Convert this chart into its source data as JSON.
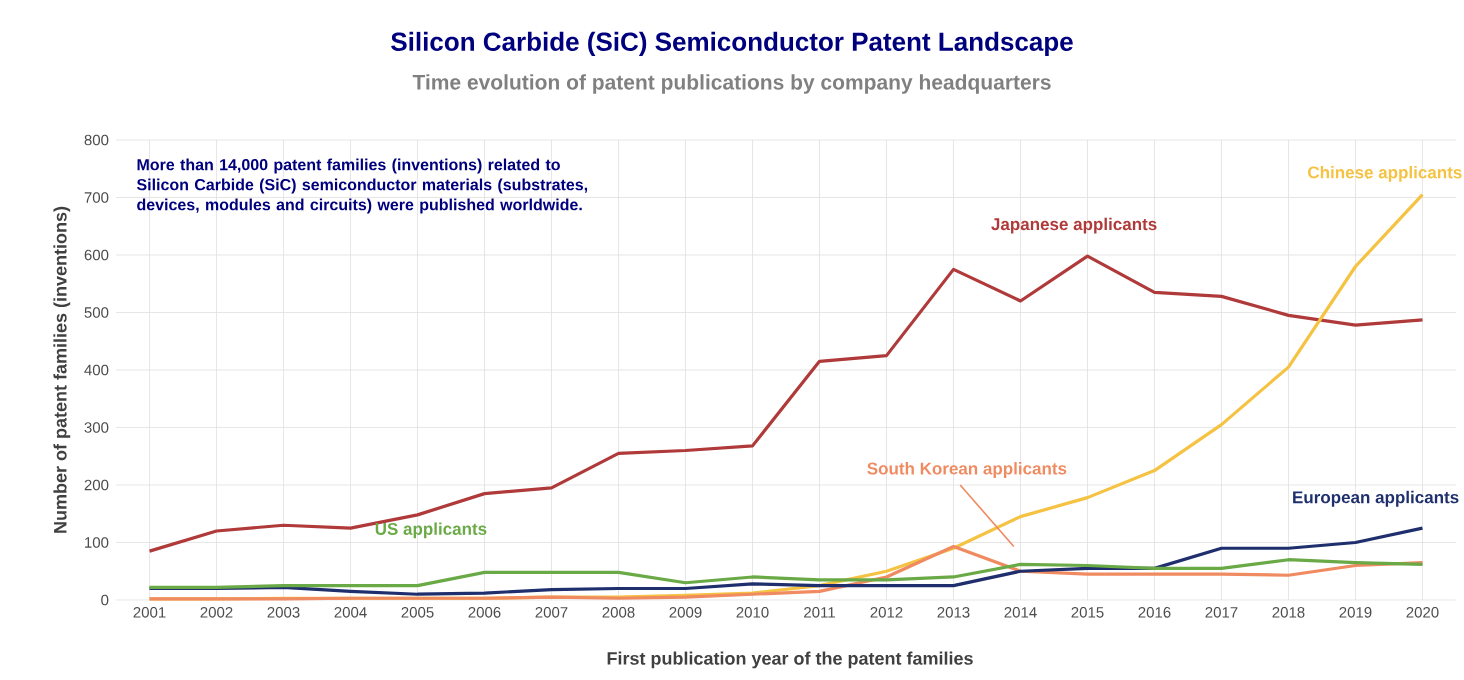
{
  "chart_data": {
    "type": "line",
    "title": "Silicon Carbide (SiC) Semiconductor Patent Landscape",
    "subtitle": "Time evolution of patent publications by company headquarters",
    "xlabel": "First publication year of the patent families",
    "ylabel": "Number of patent families (inventions)",
    "annotations": [
      "More than 14,000 patent families (inventions) related to Silicon Carbide (SiC) semiconductor materials (substrates, devices, modules and circuits) were published worldwide."
    ],
    "categories": [
      "2001",
      "2002",
      "2003",
      "2004",
      "2005",
      "2006",
      "2007",
      "2008",
      "2009",
      "2010",
      "2011",
      "2012",
      "2013",
      "2014",
      "2015",
      "2016",
      "2017",
      "2018",
      "2019",
      "2020"
    ],
    "series": [
      {
        "name": "Japanese applicants",
        "color": "#b03a3a",
        "values": [
          85,
          120,
          130,
          125,
          148,
          185,
          195,
          255,
          260,
          268,
          415,
          425,
          575,
          520,
          598,
          535,
          528,
          495,
          478,
          487
        ]
      },
      {
        "name": "Chinese applicants",
        "color": "#f5c242",
        "values": [
          2,
          2,
          3,
          3,
          3,
          3,
          5,
          5,
          8,
          12,
          25,
          50,
          90,
          145,
          178,
          225,
          305,
          405,
          580,
          705
        ]
      },
      {
        "name": "South Korean applicants",
        "color": "#f08a60",
        "values": [
          2,
          2,
          2,
          3,
          3,
          3,
          5,
          3,
          5,
          10,
          15,
          40,
          93,
          50,
          45,
          45,
          45,
          43,
          60,
          65
        ]
      },
      {
        "name": "European applicants",
        "color": "#1f2f6e",
        "values": [
          20,
          20,
          22,
          15,
          10,
          12,
          18,
          20,
          20,
          28,
          25,
          25,
          25,
          50,
          55,
          55,
          90,
          90,
          100,
          125
        ]
      },
      {
        "name": "US applicants",
        "color": "#6aaa46",
        "values": [
          22,
          22,
          25,
          25,
          25,
          48,
          48,
          48,
          30,
          40,
          35,
          35,
          40,
          62,
          60,
          55,
          55,
          70,
          65,
          62
        ]
      }
    ],
    "ylim": [
      0,
      800
    ],
    "yticks": [
      0,
      100,
      200,
      300,
      400,
      500,
      600,
      700,
      800
    ],
    "grid": true,
    "marker": "none",
    "line_style": "solid"
  }
}
